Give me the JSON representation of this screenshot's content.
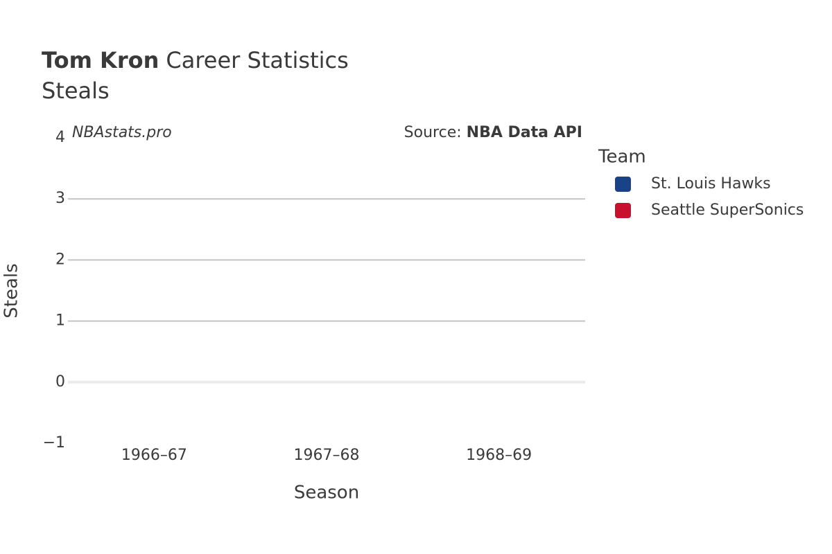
{
  "chart_data": {
    "type": "bar",
    "title_name": "Tom Kron",
    "title": "Career Statistics",
    "subtitle": "Steals",
    "watermark": "NBAstats.pro",
    "source_label": "Source:",
    "source": "NBA Data API",
    "x_label": "Season",
    "y_label": "Steals",
    "legend_title": "Team",
    "legend_position": "right",
    "categories": [
      "1966–67",
      "1967–68",
      "1968–69"
    ],
    "series": [
      {
        "name": "St. Louis Hawks",
        "color": "#1a4286",
        "values": [
          null,
          null,
          null
        ]
      },
      {
        "name": "Seattle SuperSonics",
        "color": "#c8102e",
        "values": [
          null,
          null,
          null
        ]
      }
    ],
    "ylim": [
      -1,
      4
    ],
    "yticks": [
      {
        "value": -1,
        "label": "−1"
      },
      0,
      1,
      2,
      3,
      4
    ],
    "grid": true
  }
}
